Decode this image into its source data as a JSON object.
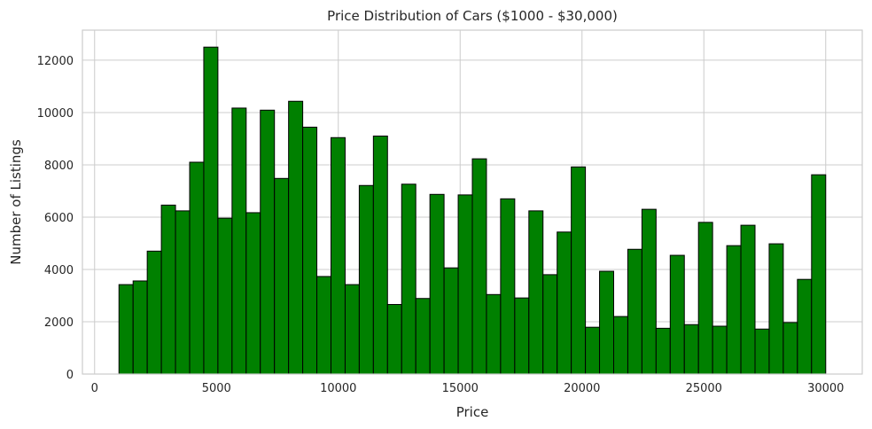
{
  "chart_data": {
    "type": "bar",
    "title": "Price Distribution of Cars ($1000 - $30,000)",
    "xlabel": "Price",
    "ylabel": "Number of Listings",
    "xlim": [
      -500,
      31500
    ],
    "ylim": [
      0,
      13150
    ],
    "xticks": [
      0,
      5000,
      10000,
      15000,
      20000,
      25000,
      30000
    ],
    "yticks": [
      0,
      2000,
      4000,
      6000,
      8000,
      10000,
      12000
    ],
    "grid": true,
    "legend": "none",
    "bar_color": "#008000",
    "edge_color": "#000000",
    "bin_start": 1000,
    "bin_width": 580,
    "values": [
      3420,
      3560,
      4700,
      6460,
      6240,
      8100,
      12500,
      5960,
      10170,
      6170,
      10090,
      7480,
      10430,
      9440,
      3730,
      9040,
      3420,
      7210,
      9100,
      2660,
      7260,
      2890,
      6870,
      4060,
      6850,
      8230,
      3040,
      6700,
      2910,
      6240,
      3800,
      5430,
      7920,
      1790,
      3930,
      2200,
      4770,
      6300,
      1750,
      4540,
      1890,
      5800,
      1830,
      4910,
      5690,
      1720,
      4980,
      1970,
      3620,
      7620
    ]
  }
}
